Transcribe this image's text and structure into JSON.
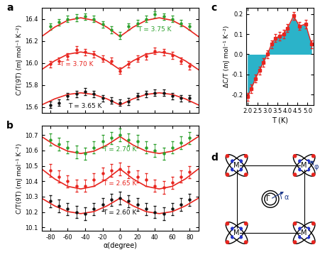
{
  "chart_data": [
    {
      "type": "scatter",
      "title": "a",
      "ylabel": "C/T(9T) (mJ mol⁻¹ K⁻²)",
      "xlim": [
        -90,
        90
      ],
      "xticks": [
        -80,
        -60,
        -40,
        -20,
        0,
        20,
        40,
        60,
        80
      ],
      "ylim": [
        15.55,
        16.5
      ],
      "yticks": [
        15.6,
        15.8,
        16.0,
        16.2,
        16.4
      ],
      "tick_labels": "y",
      "grid": false,
      "series": [
        {
          "name": "T = 3.75 K",
          "color": "#2ca02c",
          "marker": "o",
          "x": [
            -80,
            -70,
            -60,
            -50,
            -40,
            -30,
            -20,
            -10,
            0,
            10,
            20,
            30,
            40,
            50,
            60,
            70,
            80
          ],
          "values": [
            16.33,
            16.37,
            16.4,
            16.41,
            16.42,
            16.4,
            16.35,
            16.3,
            16.25,
            16.33,
            16.36,
            16.4,
            16.44,
            16.42,
            16.4,
            16.36,
            16.33
          ],
          "errors": [
            0.03,
            0.03,
            0.03,
            0.03,
            0.03,
            0.03,
            0.03,
            0.03,
            0.03,
            0.03,
            0.03,
            0.03,
            0.03,
            0.03,
            0.03,
            0.03,
            0.03
          ]
        },
        {
          "name": "T = 3.70 K",
          "color": "#e8251f",
          "marker": "o",
          "x": [
            -80,
            -70,
            -60,
            -50,
            -40,
            -30,
            -20,
            -10,
            0,
            10,
            20,
            30,
            40,
            50,
            60,
            70,
            80
          ],
          "values": [
            15.99,
            16.02,
            16.06,
            16.12,
            16.1,
            16.08,
            16.04,
            16.02,
            15.93,
            15.99,
            16.04,
            16.06,
            16.11,
            16.1,
            16.07,
            16.02,
            15.97
          ],
          "errors": [
            0.03,
            0.03,
            0.03,
            0.03,
            0.03,
            0.03,
            0.03,
            0.03,
            0.03,
            0.03,
            0.03,
            0.03,
            0.03,
            0.03,
            0.03,
            0.03,
            0.03
          ]
        },
        {
          "name": "T = 3.65 K",
          "color": "#111111",
          "marker": "o",
          "x": [
            -80,
            -70,
            -60,
            -50,
            -40,
            -30,
            -20,
            -10,
            0,
            10,
            20,
            30,
            40,
            50,
            60,
            70,
            80
          ],
          "values": [
            15.62,
            15.64,
            15.7,
            15.72,
            15.74,
            15.72,
            15.68,
            15.66,
            15.64,
            15.65,
            15.7,
            15.72,
            15.73,
            15.73,
            15.7,
            15.68,
            15.68
          ],
          "errors": [
            0.03,
            0.03,
            0.03,
            0.03,
            0.03,
            0.03,
            0.03,
            0.03,
            0.03,
            0.03,
            0.03,
            0.03,
            0.03,
            0.03,
            0.03,
            0.03,
            0.03
          ]
        },
        {
          "type": "line",
          "color": "#e8251f",
          "x": [
            -90,
            -75,
            -60,
            -45,
            -30,
            -15,
            0,
            15,
            30,
            45,
            60,
            75,
            90
          ],
          "values": [
            16.24,
            16.325,
            16.387,
            16.41,
            16.387,
            16.325,
            16.24,
            16.325,
            16.387,
            16.41,
            16.387,
            16.325,
            16.24
          ]
        },
        {
          "type": "line",
          "color": "#e8251f",
          "x": [
            -90,
            -75,
            -60,
            -45,
            -30,
            -15,
            0,
            15,
            30,
            45,
            60,
            75,
            90
          ],
          "values": [
            15.94,
            16.02,
            16.08,
            16.1,
            16.08,
            16.02,
            15.94,
            16.02,
            16.08,
            16.1,
            16.08,
            16.02,
            15.94
          ]
        },
        {
          "type": "line",
          "color": "#e8251f",
          "x": [
            -90,
            -75,
            -60,
            -45,
            -30,
            -15,
            0,
            15,
            30,
            45,
            60,
            75,
            90
          ],
          "values": [
            15.62,
            15.675,
            15.715,
            15.73,
            15.715,
            15.675,
            15.62,
            15.675,
            15.715,
            15.73,
            15.715,
            15.675,
            15.62
          ]
        }
      ]
    },
    {
      "type": "scatter",
      "title": "b",
      "xlabel": "α(degree)",
      "ylabel": "C/T(9T) (mJ mol⁻¹ K⁻²)",
      "xlim": [
        -90,
        90
      ],
      "xticks": [
        -80,
        -60,
        -40,
        -20,
        0,
        20,
        40,
        60,
        80
      ],
      "ylim": [
        10.08,
        10.76
      ],
      "yticks": [
        10.1,
        10.2,
        10.3,
        10.4,
        10.5,
        10.6,
        10.7
      ],
      "grid": false,
      "series": [
        {
          "name": "T = 2.70 K",
          "color": "#2ca02c",
          "marker": "o",
          "x": [
            -80,
            -70,
            -60,
            -50,
            -40,
            -30,
            -20,
            -10,
            0,
            10,
            20,
            30,
            40,
            50,
            60,
            70,
            80
          ],
          "values": [
            10.67,
            10.64,
            10.62,
            10.59,
            10.58,
            10.62,
            10.66,
            10.68,
            10.7,
            10.67,
            10.66,
            10.62,
            10.6,
            10.58,
            10.62,
            10.65,
            10.68
          ],
          "errors": [
            0.04,
            0.04,
            0.04,
            0.04,
            0.04,
            0.04,
            0.04,
            0.04,
            0.04,
            0.04,
            0.04,
            0.04,
            0.04,
            0.04,
            0.04,
            0.04,
            0.04
          ]
        },
        {
          "name": "T = 2.65 K",
          "color": "#e8251f",
          "marker": "o",
          "x": [
            -80,
            -70,
            -60,
            -50,
            -40,
            -30,
            -20,
            -10,
            0,
            10,
            20,
            30,
            40,
            50,
            60,
            70,
            80
          ],
          "values": [
            10.47,
            10.43,
            10.4,
            10.37,
            10.37,
            10.41,
            10.45,
            10.47,
            10.48,
            10.46,
            10.43,
            10.41,
            10.37,
            10.36,
            10.39,
            10.43,
            10.46
          ],
          "errors": [
            0.04,
            0.04,
            0.04,
            0.04,
            0.04,
            0.04,
            0.04,
            0.04,
            0.04,
            0.04,
            0.04,
            0.04,
            0.04,
            0.04,
            0.04,
            0.04,
            0.04
          ]
        },
        {
          "name": "T = 2.60 K",
          "color": "#111111",
          "marker": "o",
          "x": [
            -80,
            -70,
            -60,
            -50,
            -40,
            -30,
            -20,
            -10,
            0,
            10,
            20,
            30,
            40,
            50,
            60,
            70,
            80
          ],
          "values": [
            10.27,
            10.24,
            10.22,
            10.2,
            10.19,
            10.22,
            10.25,
            10.28,
            10.29,
            10.27,
            10.25,
            10.22,
            10.2,
            10.19,
            10.22,
            10.25,
            10.28
          ],
          "errors": [
            0.04,
            0.04,
            0.04,
            0.04,
            0.04,
            0.04,
            0.04,
            0.04,
            0.04,
            0.04,
            0.04,
            0.04,
            0.04,
            0.04,
            0.04,
            0.04,
            0.04
          ]
        },
        {
          "type": "line",
          "color": "#e8251f",
          "x": [
            -90,
            -75,
            -60,
            -45,
            -30,
            -15,
            0,
            15,
            30,
            45,
            60,
            75,
            90
          ],
          "values": [
            10.69,
            10.635,
            10.595,
            10.58,
            10.595,
            10.635,
            10.69,
            10.635,
            10.595,
            10.58,
            10.595,
            10.635,
            10.69
          ]
        },
        {
          "type": "line",
          "color": "#e8251f",
          "x": [
            -90,
            -75,
            -60,
            -45,
            -30,
            -15,
            0,
            15,
            30,
            45,
            60,
            75,
            90
          ],
          "values": [
            10.48,
            10.415,
            10.367,
            10.35,
            10.367,
            10.415,
            10.48,
            10.415,
            10.367,
            10.35,
            10.367,
            10.415,
            10.48
          ]
        },
        {
          "type": "line",
          "color": "#e8251f",
          "x": [
            -90,
            -75,
            -60,
            -45,
            -30,
            -15,
            0,
            15,
            30,
            45,
            60,
            75,
            90
          ],
          "values": [
            10.29,
            10.24,
            10.203,
            10.19,
            10.203,
            10.24,
            10.29,
            10.24,
            10.203,
            10.19,
            10.203,
            10.24,
            10.29
          ]
        }
      ]
    },
    {
      "type": "line",
      "title": "c",
      "xlabel": "T (K)",
      "ylabel": "ΔC/T (mJ mol⁻¹ K⁻²)",
      "xlim": [
        1.95,
        5.3
      ],
      "xticks": [
        2.0,
        2.5,
        3.0,
        3.5,
        4.0,
        4.5,
        5.0
      ],
      "ylim": [
        -0.25,
        0.23
      ],
      "yticks": [
        -0.2,
        -0.1,
        0.0,
        0.1,
        0.2
      ],
      "grid": false,
      "series": [
        {
          "type": "area",
          "color": "#2bb3c9",
          "x": [
            2.0,
            2.2,
            2.4,
            2.6,
            2.8,
            3.0,
            3.2,
            3.4,
            3.6,
            3.8,
            4.0,
            4.3,
            4.6,
            4.9,
            5.2
          ],
          "values": [
            -0.21,
            -0.17,
            -0.12,
            -0.08,
            -0.04,
            0.0,
            0.05,
            0.08,
            0.09,
            0.1,
            0.13,
            0.19,
            0.14,
            0.15,
            0.05
          ]
        },
        {
          "color": "#e8251f",
          "marker": "s",
          "x": [
            2.0,
            2.2,
            2.4,
            2.6,
            2.8,
            3.0,
            3.2,
            3.4,
            3.6,
            3.8,
            4.0,
            4.3,
            4.6,
            4.9,
            5.2
          ],
          "values": [
            -0.21,
            -0.17,
            -0.12,
            -0.08,
            -0.04,
            0.0,
            0.05,
            0.08,
            0.09,
            0.1,
            0.13,
            0.19,
            0.14,
            0.15,
            0.05
          ],
          "errors": [
            0.02,
            0.02,
            0.02,
            0.02,
            0.02,
            0.02,
            0.02,
            0.02,
            0.02,
            0.02,
            0.02,
            0.02,
            0.02,
            0.02,
            0.02
          ]
        }
      ]
    }
  ],
  "diagram": {
    "title": "d",
    "corner_label": "M",
    "center_label": "Γ",
    "angle_labels": [
      "α",
      "φ"
    ]
  }
}
